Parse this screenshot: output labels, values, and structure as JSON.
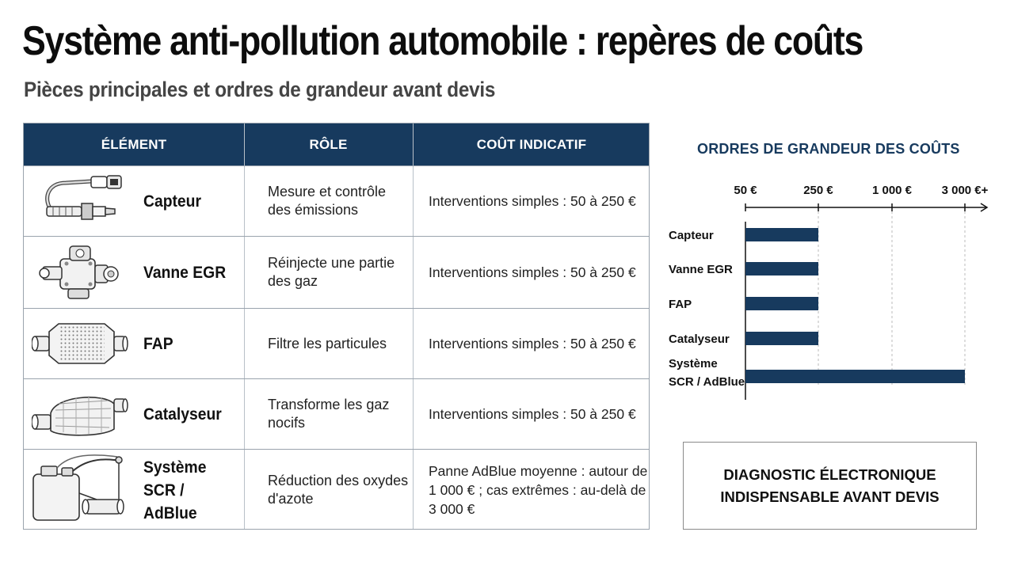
{
  "title": "Système anti-pollution automobile : repères de coûts",
  "subtitle": "Pièces principales et ordres de grandeur avant devis",
  "table": {
    "headers": [
      "ÉLÉMENT",
      "RÔLE",
      "COÛT INDICATIF"
    ],
    "rows": [
      {
        "icon": "oxygen-sensor-icon",
        "name": "Capteur",
        "role": "Mesure et contrôle des émissions",
        "cost": "Interventions simples : 50 à 250 €"
      },
      {
        "icon": "egr-valve-icon",
        "name": "Vanne EGR",
        "role": "Réinjecte une partie des gaz",
        "cost": "Interventions simples : 50 à 250 €"
      },
      {
        "icon": "particle-filter-icon",
        "name": "FAP",
        "role": "Filtre les particules",
        "cost": "Interventions simples : 50 à 250 €"
      },
      {
        "icon": "catalytic-converter-icon",
        "name": "Catalyseur",
        "role": "Transforme les gaz nocifs",
        "cost": "Interventions simples : 50 à 250 €"
      },
      {
        "icon": "scr-adblue-system-icon",
        "name": "Système SCR / AdBlue",
        "role": "Réduction des oxydes d'azote",
        "cost": "Panne AdBlue moyenne : autour de 1 000 € ; cas extrêmes : au-delà de 3 000 €"
      }
    ]
  },
  "chart_data": {
    "type": "bar",
    "orientation": "horizontal",
    "title": "ORDRES DE GRANDEUR DES COÛTS",
    "ticks": [
      "50 €",
      "250 €",
      "1 000 €",
      "3 000 €+"
    ],
    "categories": [
      "Capteur",
      "Vanne EGR",
      "FAP",
      "Catalyseur",
      "Système SCR / AdBlue"
    ],
    "values": [
      250,
      250,
      250,
      250,
      3000
    ],
    "unit": "€",
    "color": "#173a5e",
    "grid": true
  },
  "diagnostic_box": {
    "line1": "DIAGNOSTIC ÉLECTRONIQUE",
    "line2": "INDISPENSABLE AVANT DEVIS"
  }
}
